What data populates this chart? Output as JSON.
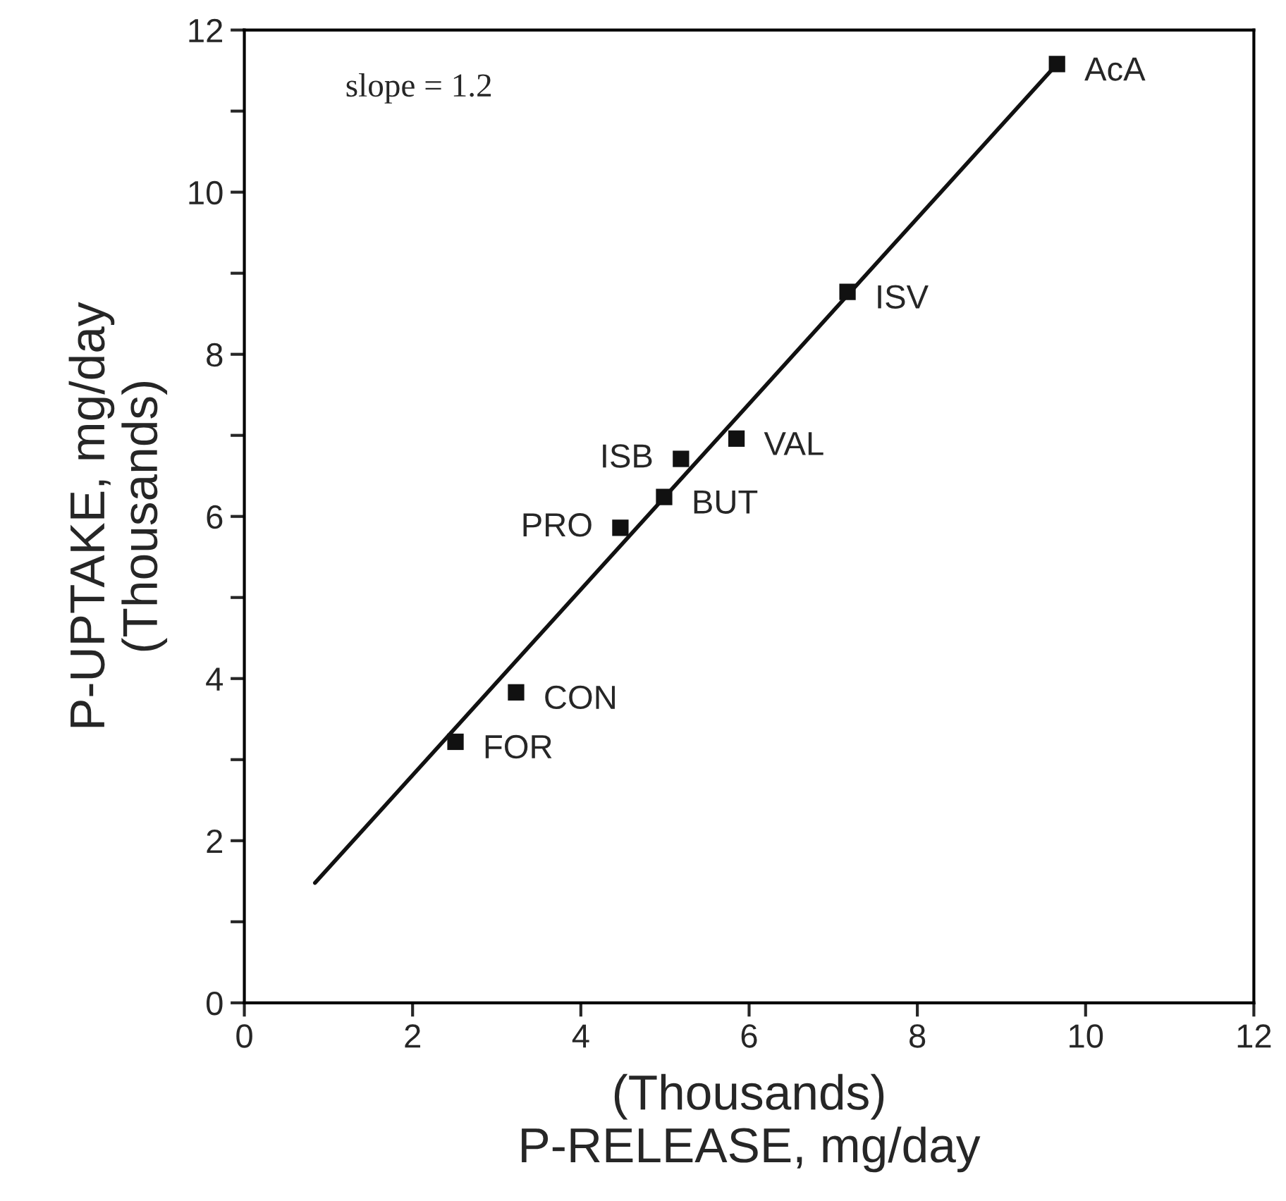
{
  "chart_data": {
    "type": "scatter",
    "xlabel": "(Thousands)\nP-RELEASE, mg/day",
    "ylabel": "P-UPTAKE, mg/day\n(Thousands)",
    "xlim": [
      0,
      12
    ],
    "ylim": [
      0,
      12
    ],
    "xticks": [
      0,
      2,
      4,
      6,
      8,
      10,
      12
    ],
    "yticks": [
      0,
      {
        "value": 1,
        "label": null
      },
      2,
      {
        "value": 3,
        "label": null
      },
      4,
      {
        "value": 5,
        "label": null
      },
      6,
      {
        "value": 7,
        "label": null
      },
      8,
      {
        "value": 9,
        "label": null
      },
      10,
      {
        "value": 11,
        "label": null
      },
      12
    ],
    "grid": false,
    "legend": false,
    "series": [
      {
        "marker": "square",
        "color": "#111111",
        "x": [
          9.66,
          7.17,
          5.85,
          5.19,
          4.99,
          4.47,
          3.23,
          2.51
        ],
        "values": [
          11.58,
          8.77,
          6.96,
          6.71,
          6.24,
          5.86,
          3.83,
          3.22
        ]
      },
      {
        "type": "line",
        "line_style": "solid",
        "marker": "none",
        "color": "#111111",
        "x": [
          0.84,
          9.66
        ],
        "values": [
          1.48,
          11.58
        ]
      }
    ],
    "annotations": [
      "slope = 1.2",
      {
        "text": "AcA",
        "x": 9.66,
        "y": 11.58
      },
      {
        "text": "ISV",
        "x": 7.17,
        "y": 8.77
      },
      {
        "text": "VAL",
        "x": 5.85,
        "y": 6.96
      },
      {
        "text": "ISB",
        "x": 5.19,
        "y": 6.71
      },
      {
        "text": "BUT",
        "x": 4.99,
        "y": 6.24
      },
      {
        "text": "PRO",
        "x": 4.47,
        "y": 5.86
      },
      {
        "text": "CON",
        "x": 3.23,
        "y": 3.83
      },
      {
        "text": "FOR",
        "x": 2.51,
        "y": 3.22
      }
    ]
  }
}
